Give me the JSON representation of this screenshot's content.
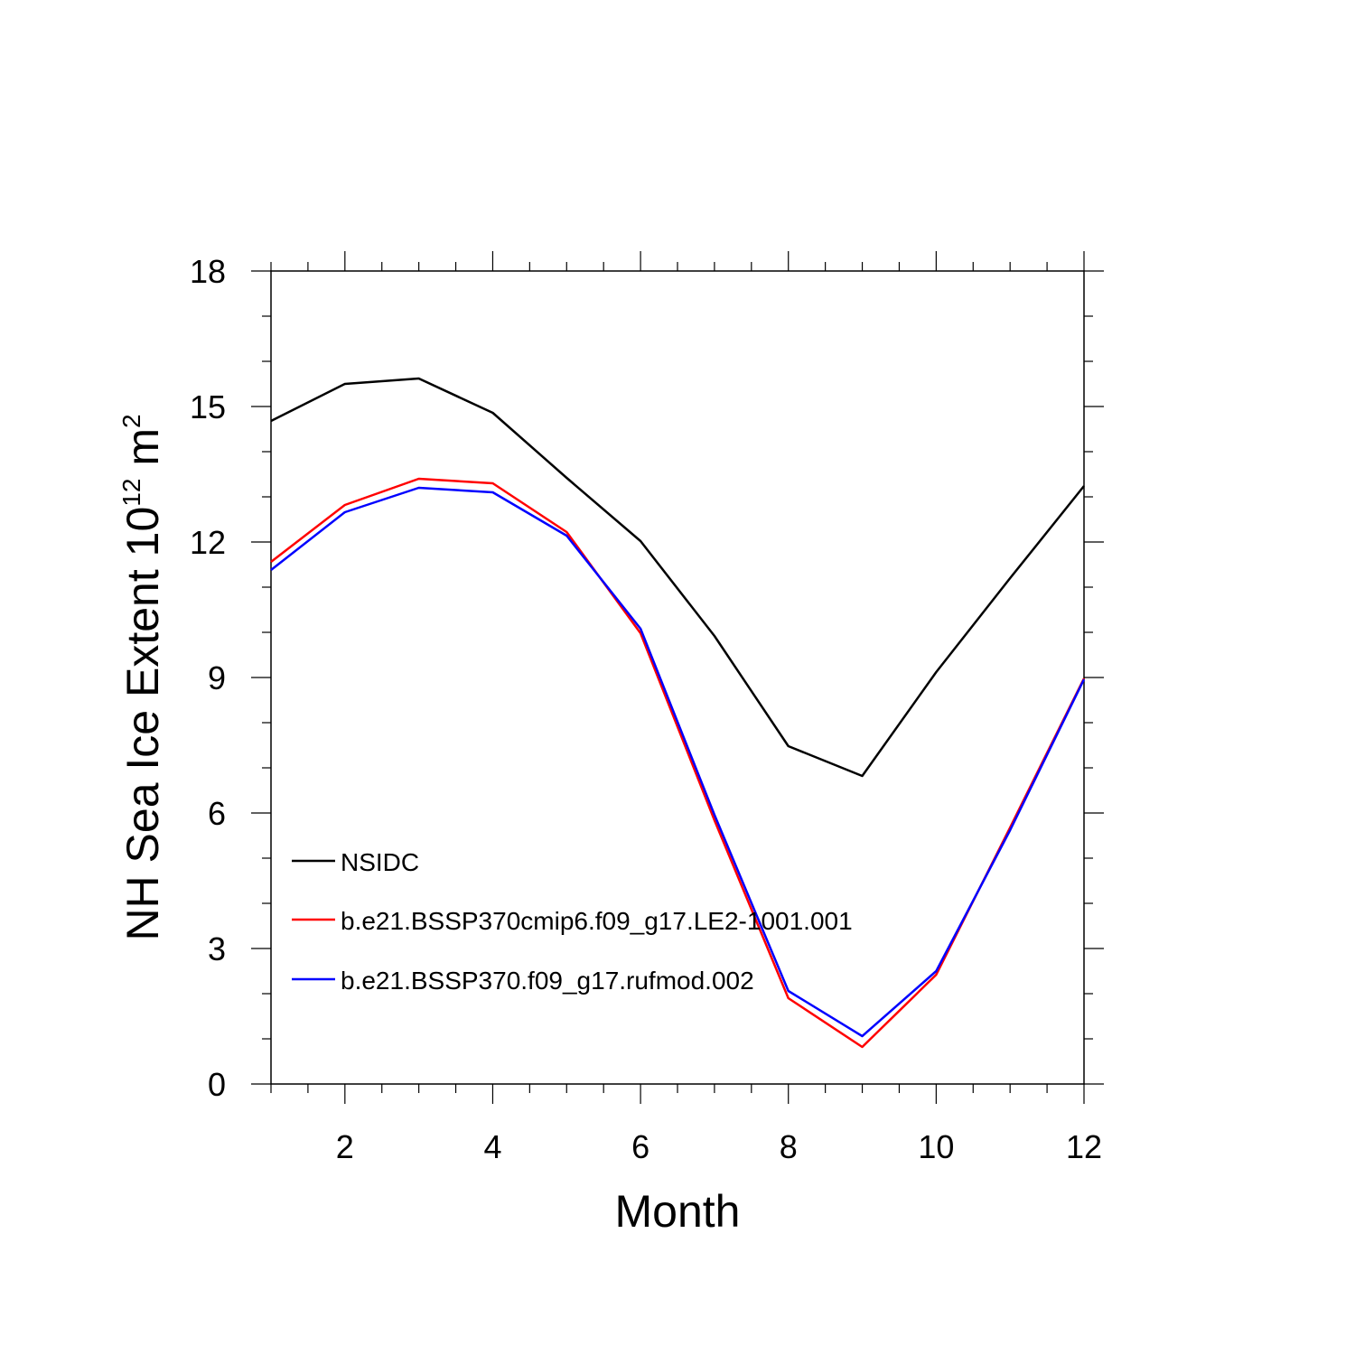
{
  "chart_data": {
    "type": "line",
    "xlabel": "Month",
    "ylabel": {
      "text": "NH Sea Ice Extent 10",
      "exponent1": "12",
      "unit": " m",
      "exponent2": "2"
    },
    "xlim": [
      1,
      12
    ],
    "ylim": [
      0,
      18
    ],
    "xticks": [
      2,
      4,
      6,
      8,
      10,
      12
    ],
    "yticks": [
      0,
      3,
      6,
      9,
      12,
      15,
      18
    ],
    "x": [
      1,
      2,
      3,
      4,
      5,
      6,
      7,
      8,
      9,
      10,
      11,
      12
    ],
    "grid": false,
    "legend_position": "lower-left",
    "series": [
      {
        "name": "NSIDC",
        "color": "#000000",
        "values": [
          14.68,
          15.5,
          15.62,
          14.86,
          13.42,
          12.02,
          9.92,
          7.48,
          6.82,
          9.12,
          11.2,
          13.24
        ]
      },
      {
        "name": "b.e21.BSSP370cmip6.f09_g17.LE2-1001.001",
        "color": "#ff0000",
        "values": [
          11.56,
          12.82,
          13.4,
          13.3,
          12.22,
          9.98,
          5.84,
          1.9,
          0.82,
          2.42,
          5.68,
          8.98
        ]
      },
      {
        "name": "b.e21.BSSP370.f09_g17.rufmod.002",
        "color": "#0000ff",
        "values": [
          11.38,
          12.66,
          13.2,
          13.1,
          12.14,
          10.08,
          5.96,
          2.06,
          1.06,
          2.5,
          5.62,
          8.96
        ]
      }
    ]
  }
}
